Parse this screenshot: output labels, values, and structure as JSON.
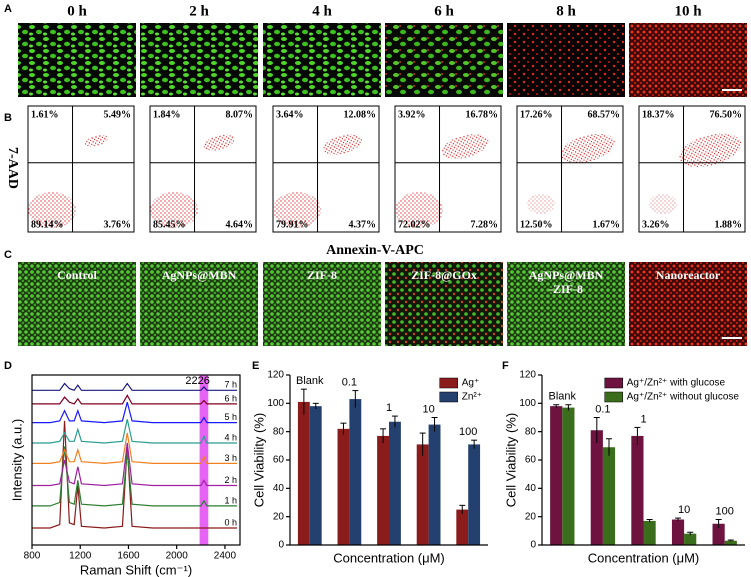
{
  "figure": {
    "panel_labels": [
      "A",
      "B",
      "C",
      "D",
      "E",
      "F"
    ],
    "a": {
      "times": [
        "0 h",
        "2 h",
        "4 h",
        "6 h",
        "8 h",
        "10 h"
      ]
    },
    "b": {
      "y_label": "7-AAD",
      "x_label": "Annexin-V-APC",
      "quadrants": [
        [
          "1.61%",
          "5.49%",
          "89.14%",
          "3.76%"
        ],
        [
          "1.84%",
          "8.07%",
          "85.45%",
          "4.64%"
        ],
        [
          "3.64%",
          "12.08%",
          "79.91%",
          "4.37%"
        ],
        [
          "3.92%",
          "16.78%",
          "72.02%",
          "7.28%"
        ],
        [
          "17.26%",
          "68.57%",
          "12.50%",
          "1.67%"
        ],
        [
          "18.37%",
          "76.50%",
          "3.26%",
          "1.88%"
        ]
      ]
    },
    "c": {
      "labels": [
        "Control",
        "AgNPs@MBN",
        "ZIF-8",
        "ZIF-8@GOx",
        [
          "AgNPs@MBN",
          "-ZIF-8"
        ],
        "Nanoreactor"
      ]
    }
  },
  "chart_data": [
    {
      "type": "line",
      "x_label": "Raman Shift (cm⁻¹)",
      "y_label": "Intensity (a.u.)",
      "annotation": "2226",
      "highlight": [
        2190,
        2262
      ],
      "highlight_color": "#e03cf0",
      "x": [
        800,
        950,
        1030,
        1070,
        1110,
        1150,
        1180,
        1210,
        1400,
        1550,
        1590,
        1630,
        1800,
        2100,
        2200,
        2226,
        2250,
        2400,
        2500
      ],
      "xlim": [
        800,
        2525
      ],
      "xticks": [
        800,
        1200,
        1600,
        2000,
        2400
      ],
      "ylim": [
        0,
        10
      ],
      "series": [
        {
          "name": "0 h",
          "color": "#8b1a1a",
          "values": [
            1.0,
            1.0,
            1.2,
            7.3,
            1.3,
            1.2,
            3.5,
            1.1,
            1.0,
            1.1,
            5.8,
            1.1,
            1.0,
            1.0,
            1.0,
            1.0,
            1.0,
            1.0,
            1.0
          ]
        },
        {
          "name": "1 h",
          "color": "#2e7d32",
          "values": [
            2.3,
            2.3,
            2.5,
            5.8,
            2.5,
            2.4,
            3.8,
            2.4,
            2.3,
            2.4,
            5.5,
            2.4,
            2.3,
            2.3,
            2.3,
            2.6,
            2.3,
            2.3,
            2.3
          ]
        },
        {
          "name": "2 h",
          "color": "#a020a0",
          "values": [
            3.5,
            3.5,
            3.6,
            5.0,
            3.7,
            3.6,
            4.6,
            3.6,
            3.5,
            3.6,
            6.0,
            3.6,
            3.5,
            3.5,
            3.5,
            3.8,
            3.5,
            3.5,
            3.5
          ]
        },
        {
          "name": "3 h",
          "color": "#f08020",
          "values": [
            4.8,
            4.8,
            4.9,
            5.6,
            4.9,
            4.9,
            5.6,
            4.9,
            4.8,
            4.9,
            6.6,
            4.9,
            4.8,
            4.8,
            4.8,
            5.2,
            4.8,
            4.8,
            4.8
          ]
        },
        {
          "name": "4 h",
          "color": "#2a9d8f",
          "values": [
            6.0,
            6.0,
            6.1,
            6.6,
            6.1,
            6.1,
            6.8,
            6.1,
            6.0,
            6.1,
            7.4,
            6.1,
            6.0,
            6.0,
            6.0,
            6.4,
            6.0,
            6.0,
            6.0
          ]
        },
        {
          "name": "5 h",
          "color": "#1a1aff",
          "values": [
            7.2,
            7.2,
            7.3,
            7.9,
            7.3,
            7.3,
            7.9,
            7.3,
            7.2,
            7.3,
            8.4,
            7.3,
            7.2,
            7.2,
            7.2,
            7.5,
            7.2,
            7.2,
            7.2
          ]
        },
        {
          "name": "6 h",
          "color": "#800020",
          "values": [
            8.3,
            8.3,
            8.3,
            8.7,
            8.4,
            8.3,
            8.6,
            8.3,
            8.3,
            8.3,
            8.8,
            8.3,
            8.3,
            8.3,
            8.3,
            8.5,
            8.3,
            8.3,
            8.3
          ]
        },
        {
          "name": "7 h",
          "color": "#1a1a80",
          "values": [
            9.1,
            9.1,
            9.1,
            9.5,
            9.2,
            9.1,
            9.4,
            9.1,
            9.1,
            9.1,
            9.5,
            9.1,
            9.1,
            9.1,
            9.1,
            9.3,
            9.1,
            9.1,
            9.1
          ]
        }
      ]
    },
    {
      "type": "bar",
      "x_label": "Concentration (μM)",
      "y_label": "Cell Viability (%)",
      "legend": "upper right",
      "categories": [
        "Blank",
        "0.1",
        "1",
        "10",
        "100"
      ],
      "ylim": [
        0,
        120
      ],
      "yticks": [
        0,
        20,
        40,
        60,
        80,
        100,
        120
      ],
      "series": [
        {
          "name": "Ag⁺",
          "color": "#8b1c1c",
          "values": [
            101,
            82,
            77,
            71,
            25
          ],
          "errors": [
            9,
            4,
            5,
            8,
            3
          ]
        },
        {
          "name": "Zn²⁺",
          "color": "#24406e",
          "values": [
            98,
            103,
            87,
            85,
            71
          ],
          "errors": [
            2,
            6,
            4,
            5,
            3
          ]
        }
      ]
    },
    {
      "type": "bar",
      "x_label": "Concentration (μM)",
      "y_label": "Cell Viability (%)",
      "legend": "upper right",
      "categories": [
        "Blank",
        "0.1",
        "1",
        "10",
        "100"
      ],
      "ylim": [
        0,
        120
      ],
      "yticks": [
        0,
        20,
        40,
        60,
        80,
        100,
        120
      ],
      "series": [
        {
          "name": "Ag⁺/Zn²⁺ with glucose",
          "color": "#6e1240",
          "values": [
            98,
            81,
            77,
            18,
            15
          ],
          "errors": [
            1,
            9,
            6,
            1,
            3
          ]
        },
        {
          "name": "Ag⁺/Zn²⁺ without glucose",
          "color": "#3b6e1c",
          "values": [
            97,
            69,
            17,
            8,
            3
          ],
          "errors": [
            2,
            6,
            1,
            1,
            0.5
          ]
        }
      ]
    }
  ]
}
